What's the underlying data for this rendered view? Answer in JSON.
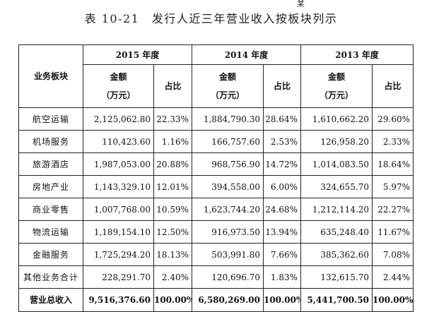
{
  "stray_mark": "某",
  "caption": "表 10-21　发行人近三年营业收入按板块列示",
  "header": {
    "segment_col": "业务板块",
    "years": [
      "2015 年度",
      "2014 年度",
      "2013 年度"
    ],
    "amount_label": "金额",
    "amount_unit": "（万元）",
    "share_label": "占比"
  },
  "rows": [
    {
      "segment": "航空运输",
      "v2015": "2,125,062.80",
      "p2015": "22.33%",
      "v2014": "1,884,790.30",
      "p2014": "28.64%",
      "v2013": "1,610,662.20",
      "p2013": "29.60%"
    },
    {
      "segment": "机场服务",
      "v2015": "110,423.60",
      "p2015": "1.16%",
      "v2014": "166,757.60",
      "p2014": "2.53%",
      "v2013": "126,958.20",
      "p2013": "2.33%"
    },
    {
      "segment": "旅游酒店",
      "v2015": "1,987,053.00",
      "p2015": "20.88%",
      "v2014": "968,756.90",
      "p2014": "14.72%",
      "v2013": "1,014,083.50",
      "p2013": "18.64%"
    },
    {
      "segment": "房地产业",
      "v2015": "1,143,329.10",
      "p2015": "12.01%",
      "v2014": "394,558.00",
      "p2014": "6.00%",
      "v2013": "324,655.70",
      "p2013": "5.97%"
    },
    {
      "segment": "商业零售",
      "v2015": "1,007,768.00",
      "p2015": "10.59%",
      "v2014": "1,623,744.20",
      "p2014": "24.68%",
      "v2013": "1,212,114.20",
      "p2013": "22.27%"
    },
    {
      "segment": "物流运输",
      "v2015": "1,189,154.10",
      "p2015": "12.50%",
      "v2014": "916,973.50",
      "p2014": "13.94%",
      "v2013": "635,248.40",
      "p2013": "11.67%"
    },
    {
      "segment": "金融服务",
      "v2015": "1,725,294.20",
      "p2015": "18.13%",
      "v2014": "503,991.80",
      "p2014": "7.66%",
      "v2013": "385,362.60",
      "p2013": "7.08%"
    },
    {
      "segment": "其他业务合计",
      "v2015": "228,291.70",
      "p2015": "2.40%",
      "v2014": "120,696.70",
      "p2014": "1.83%",
      "v2013": "132,615.70",
      "p2013": "2.44%"
    }
  ],
  "total": {
    "segment": "营业总收入",
    "v2015": "9,516,376.60",
    "p2015": "100.00%",
    "v2014": "6,580,269.00",
    "p2014": "100.00%",
    "v2013": "5,441,700.50",
    "p2013": "100.00%"
  }
}
